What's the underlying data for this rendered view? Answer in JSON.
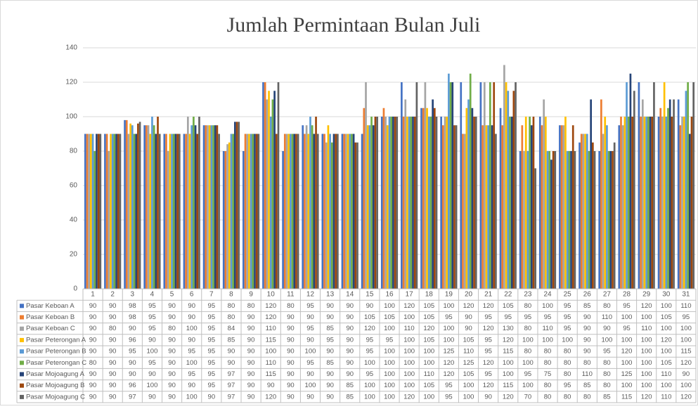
{
  "chart_data": {
    "type": "bar",
    "title": "Jumlah Permintaan Bulan Juli",
    "categories": [
      "1",
      "2",
      "3",
      "4",
      "5",
      "6",
      "7",
      "8",
      "9",
      "10",
      "11",
      "12",
      "13",
      "14",
      "15",
      "16",
      "17",
      "18",
      "19",
      "20",
      "21",
      "22",
      "23",
      "24",
      "25",
      "26",
      "27",
      "28",
      "29",
      "30",
      "31"
    ],
    "series": [
      {
        "name": "Pasar Keboan A",
        "color": "#4472c4",
        "values": [
          90,
          90,
          98,
          95,
          90,
          90,
          95,
          80,
          80,
          120,
          80,
          95,
          90,
          90,
          90,
          100,
          120,
          105,
          100,
          120,
          120,
          105,
          80,
          100,
          95,
          85,
          80,
          95,
          120,
          100,
          110
        ]
      },
      {
        "name": "Pasar Keboan B",
        "color": "#ed7d31",
        "values": [
          90,
          90,
          98,
          95,
          90,
          90,
          95,
          80,
          90,
          120,
          90,
          90,
          90,
          90,
          105,
          105,
          100,
          105,
          95,
          90,
          95,
          95,
          95,
          95,
          95,
          90,
          110,
          100,
          100,
          105,
          95
        ]
      },
      {
        "name": "Pasar Keboan C",
        "color": "#a5a5a5",
        "values": [
          90,
          80,
          90,
          95,
          80,
          100,
          95,
          84,
          90,
          110,
          90,
          95,
          85,
          90,
          120,
          100,
          110,
          120,
          100,
          90,
          120,
          130,
          80,
          110,
          95,
          90,
          90,
          95,
          110,
          100,
          100
        ]
      },
      {
        "name": "Pasar Peterongan A",
        "color": "#ffc000",
        "values": [
          90,
          90,
          96,
          90,
          90,
          90,
          95,
          85,
          90,
          115,
          90,
          90,
          95,
          90,
          95,
          95,
          100,
          105,
          100,
          105,
          95,
          120,
          100,
          100,
          100,
          90,
          100,
          100,
          100,
          120,
          100
        ]
      },
      {
        "name": "Pasar Peterongan B",
        "color": "#5b9bd5",
        "values": [
          90,
          90,
          95,
          100,
          90,
          95,
          95,
          90,
          90,
          100,
          90,
          100,
          90,
          90,
          95,
          100,
          100,
          100,
          125,
          110,
          95,
          115,
          80,
          80,
          80,
          90,
          95,
          120,
          100,
          100,
          115
        ]
      },
      {
        "name": "Pasar Peterongan C",
        "color": "#70ad47",
        "values": [
          80,
          90,
          90,
          95,
          90,
          100,
          95,
          90,
          90,
          110,
          90,
          95,
          85,
          90,
          100,
          100,
          100,
          100,
          120,
          125,
          120,
          100,
          100,
          80,
          80,
          80,
          80,
          100,
          100,
          105,
          120
        ]
      },
      {
        "name": "Pasar Mojoagung A",
        "color": "#264478",
        "values": [
          90,
          90,
          90,
          90,
          90,
          95,
          95,
          97,
          90,
          115,
          90,
          90,
          90,
          90,
          95,
          100,
          100,
          110,
          120,
          105,
          95,
          100,
          95,
          75,
          80,
          110,
          80,
          125,
          100,
          110,
          90
        ]
      },
      {
        "name": "Pasar Mojoagung B",
        "color": "#9e480e",
        "values": [
          90,
          90,
          96,
          100,
          90,
          90,
          95,
          97,
          90,
          90,
          90,
          100,
          90,
          85,
          100,
          100,
          100,
          105,
          95,
          100,
          120,
          115,
          100,
          80,
          95,
          85,
          80,
          100,
          100,
          100,
          100
        ]
      },
      {
        "name": "Pasar Mojoagung C",
        "color": "#636363",
        "values": [
          90,
          90,
          97,
          90,
          90,
          100,
          90,
          97,
          90,
          120,
          90,
          90,
          90,
          85,
          100,
          100,
          120,
          100,
          95,
          100,
          90,
          120,
          70,
          80,
          80,
          80,
          85,
          115,
          120,
          110,
          120
        ]
      }
    ],
    "ylim": [
      0,
      140
    ],
    "yticks": [
      0,
      20,
      40,
      60,
      80,
      100,
      120,
      140
    ],
    "grid": true
  }
}
